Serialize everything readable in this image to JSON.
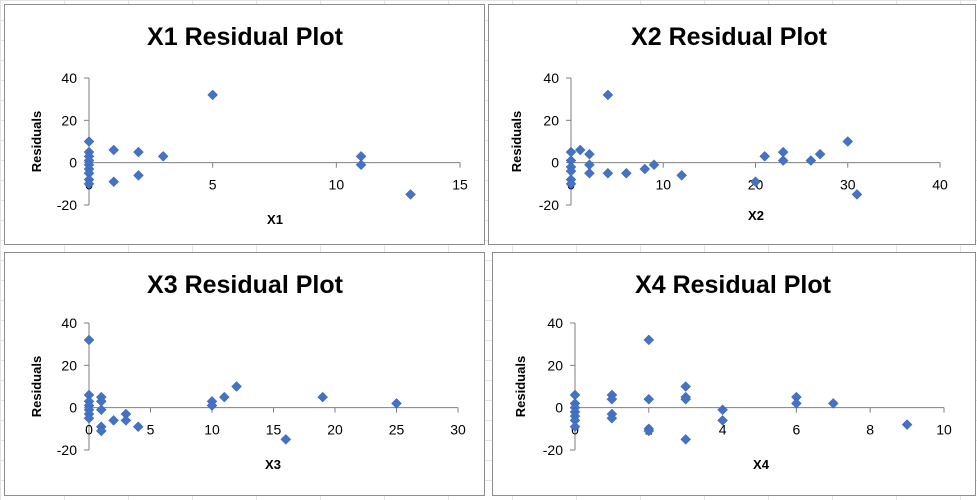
{
  "chart_data": [
    {
      "type": "scatter",
      "title": "X1  Residual Plot",
      "xlabel": "X1",
      "ylabel": "Residuals",
      "xlim": [
        0,
        15
      ],
      "ylim": [
        -20,
        40
      ],
      "xticks": [
        0,
        5,
        10,
        15
      ],
      "yticks": [
        -20,
        0,
        20,
        40
      ],
      "grid": false,
      "marker_color": "#4472C4",
      "points": [
        [
          0,
          10
        ],
        [
          0,
          5
        ],
        [
          0,
          3
        ],
        [
          0,
          1
        ],
        [
          0,
          -1
        ],
        [
          0,
          -3
        ],
        [
          0,
          -5
        ],
        [
          0,
          -8
        ],
        [
          0,
          -10
        ],
        [
          1,
          6
        ],
        [
          1,
          -9
        ],
        [
          2,
          5
        ],
        [
          2,
          -6
        ],
        [
          3,
          3
        ],
        [
          5,
          32
        ],
        [
          11,
          3
        ],
        [
          11,
          -1
        ],
        [
          13,
          -15
        ]
      ]
    },
    {
      "type": "scatter",
      "title": "X2  Residual Plot",
      "xlabel": "X2",
      "ylabel": "Residuals",
      "xlim": [
        0,
        40
      ],
      "ylim": [
        -20,
        40
      ],
      "xticks": [
        0,
        10,
        20,
        30,
        40
      ],
      "yticks": [
        -20,
        0,
        20,
        40
      ],
      "grid": false,
      "marker_color": "#4472C4",
      "points": [
        [
          0,
          5
        ],
        [
          0,
          1
        ],
        [
          0,
          -2
        ],
        [
          0,
          -4
        ],
        [
          0,
          -8
        ],
        [
          0,
          -10
        ],
        [
          1,
          6
        ],
        [
          2,
          4
        ],
        [
          2,
          -1
        ],
        [
          2,
          -5
        ],
        [
          4,
          32
        ],
        [
          4,
          -5
        ],
        [
          6,
          -5
        ],
        [
          8,
          -3
        ],
        [
          9,
          -1
        ],
        [
          12,
          -6
        ],
        [
          20,
          -9
        ],
        [
          21,
          3
        ],
        [
          23,
          5
        ],
        [
          23,
          1
        ],
        [
          26,
          1
        ],
        [
          27,
          4
        ],
        [
          30,
          10
        ],
        [
          31,
          -15
        ]
      ]
    },
    {
      "type": "scatter",
      "title": "X3  Residual Plot",
      "xlabel": "X3",
      "ylabel": "Residuals",
      "xlim": [
        0,
        30
      ],
      "ylim": [
        -20,
        40
      ],
      "xticks": [
        0,
        5,
        10,
        15,
        20,
        25,
        30
      ],
      "yticks": [
        -20,
        0,
        20,
        40
      ],
      "grid": false,
      "marker_color": "#4472C4",
      "points": [
        [
          0,
          32
        ],
        [
          0,
          6
        ],
        [
          0,
          3
        ],
        [
          0,
          1
        ],
        [
          0,
          -1
        ],
        [
          0,
          -3
        ],
        [
          0,
          -5
        ],
        [
          1,
          5
        ],
        [
          1,
          3
        ],
        [
          1,
          -1
        ],
        [
          1,
          -9
        ],
        [
          1,
          -11
        ],
        [
          2,
          -6
        ],
        [
          3,
          -3
        ],
        [
          3,
          -6
        ],
        [
          4,
          -9
        ],
        [
          10,
          3
        ],
        [
          10,
          1
        ],
        [
          11,
          5
        ],
        [
          12,
          10
        ],
        [
          16,
          -15
        ],
        [
          19,
          5
        ],
        [
          25,
          2
        ]
      ]
    },
    {
      "type": "scatter",
      "title": "X4  Residual Plot",
      "xlabel": "X4",
      "ylabel": "Residuals",
      "xlim": [
        0,
        10
      ],
      "ylim": [
        -20,
        40
      ],
      "xticks": [
        0,
        2,
        4,
        6,
        8,
        10
      ],
      "yticks": [
        -20,
        0,
        20,
        40
      ],
      "grid": false,
      "marker_color": "#4472C4",
      "points": [
        [
          0,
          6
        ],
        [
          0,
          2
        ],
        [
          0,
          0
        ],
        [
          0,
          -2
        ],
        [
          0,
          -4
        ],
        [
          0,
          -6
        ],
        [
          0,
          -9
        ],
        [
          1,
          6
        ],
        [
          1,
          4
        ],
        [
          1,
          -3
        ],
        [
          1,
          -5
        ],
        [
          2,
          32
        ],
        [
          2,
          4
        ],
        [
          2,
          -10
        ],
        [
          2,
          -11
        ],
        [
          3,
          10
        ],
        [
          3,
          5
        ],
        [
          3,
          4
        ],
        [
          3,
          -15
        ],
        [
          4,
          -1
        ],
        [
          4,
          -6
        ],
        [
          6,
          5
        ],
        [
          6,
          2
        ],
        [
          7,
          2
        ],
        [
          9,
          -8
        ]
      ]
    }
  ]
}
